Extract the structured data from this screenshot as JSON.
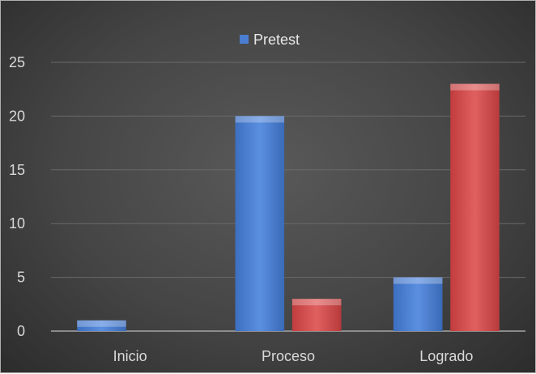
{
  "chart_data": {
    "type": "bar",
    "categories": [
      "Inicio",
      "Proceso",
      "Logrado"
    ],
    "series": [
      {
        "name": "Pretest",
        "values": [
          1,
          20,
          5
        ],
        "color": "#4a7ed0"
      },
      {
        "values": [
          0,
          3,
          23
        ],
        "color": "#d24b4b"
      }
    ],
    "ylim": [
      0,
      25
    ],
    "yticks": [
      0,
      5,
      10,
      15,
      20,
      25
    ],
    "grid": true,
    "legend": "top-center",
    "background": "#3f3f3f"
  }
}
